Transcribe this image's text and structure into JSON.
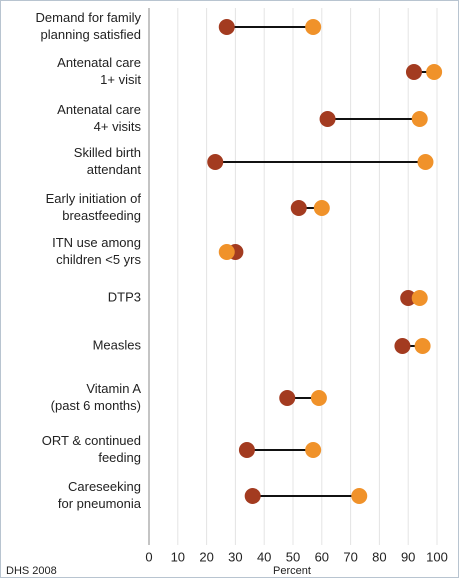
{
  "chart_data": {
    "type": "dumbbell",
    "categories": [
      [
        "Demand for family",
        "planning satisfied"
      ],
      [
        "Antenatal care",
        "1+ visit"
      ],
      [
        "Antenatal care",
        "4+ visits"
      ],
      [
        "Skilled birth",
        "attendant"
      ],
      [
        "Early initiation of",
        "breastfeeding"
      ],
      [
        "ITN use among",
        "children <5 yrs"
      ],
      [
        "DTP3"
      ],
      [
        "Measles"
      ],
      [
        "Vitamin A",
        "(past 6 months)"
      ],
      [
        "ORT & continued",
        "feeding"
      ],
      [
        "Careseeking",
        "for pneumonia"
      ]
    ],
    "series": [
      {
        "color": "#a33b20",
        "values": [
          27,
          92,
          62,
          23,
          52,
          30,
          90,
          88,
          48,
          34,
          36
        ]
      },
      {
        "color": "#f0922a",
        "values": [
          57,
          99,
          94,
          96,
          60,
          27,
          94,
          95,
          59,
          57,
          73
        ]
      }
    ],
    "xlim": [
      0,
      100
    ],
    "xticks": [
      0,
      10,
      20,
      30,
      40,
      50,
      60,
      70,
      80,
      90,
      100
    ],
    "xlabel": "Percent",
    "note": "DHS 2008",
    "grid": true
  }
}
